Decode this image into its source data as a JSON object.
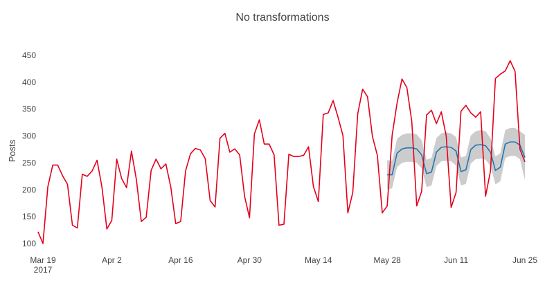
{
  "chart_data": {
    "type": "line",
    "title": "No transformations",
    "xlabel": "",
    "ylabel": "Posts",
    "ylim": [
      90,
      460
    ],
    "grid": false,
    "legend": "none",
    "yticks": [
      100,
      150,
      200,
      250,
      300,
      350,
      400,
      450
    ],
    "xticks": [
      {
        "date": "2017-03-19",
        "label": "Mar 19",
        "sublabel": "2017"
      },
      {
        "date": "2017-04-02",
        "label": "Apr 2",
        "sublabel": ""
      },
      {
        "date": "2017-04-16",
        "label": "Apr 16",
        "sublabel": ""
      },
      {
        "date": "2017-04-30",
        "label": "Apr 30",
        "sublabel": ""
      },
      {
        "date": "2017-05-14",
        "label": "May 14",
        "sublabel": ""
      },
      {
        "date": "2017-05-28",
        "label": "May 28",
        "sublabel": ""
      },
      {
        "date": "2017-06-11",
        "label": "Jun 11",
        "sublabel": ""
      },
      {
        "date": "2017-06-25",
        "label": "Jun 25",
        "sublabel": ""
      }
    ],
    "xlim": [
      "2017-03-19",
      "2017-06-25"
    ],
    "series": [
      {
        "color": "#e3001b",
        "x": [
          "2017-03-18",
          "2017-03-19",
          "2017-03-20",
          "2017-03-21",
          "2017-03-22",
          "2017-03-23",
          "2017-03-24",
          "2017-03-25",
          "2017-03-26",
          "2017-03-27",
          "2017-03-28",
          "2017-03-29",
          "2017-03-30",
          "2017-03-31",
          "2017-04-01",
          "2017-04-02",
          "2017-04-03",
          "2017-04-04",
          "2017-04-05",
          "2017-04-06",
          "2017-04-07",
          "2017-04-08",
          "2017-04-09",
          "2017-04-10",
          "2017-04-11",
          "2017-04-12",
          "2017-04-13",
          "2017-04-14",
          "2017-04-15",
          "2017-04-16",
          "2017-04-17",
          "2017-04-18",
          "2017-04-19",
          "2017-04-20",
          "2017-04-21",
          "2017-04-22",
          "2017-04-23",
          "2017-04-24",
          "2017-04-25",
          "2017-04-26",
          "2017-04-27",
          "2017-04-28",
          "2017-04-29",
          "2017-04-30",
          "2017-05-01",
          "2017-05-02",
          "2017-05-03",
          "2017-05-04",
          "2017-05-05",
          "2017-05-06",
          "2017-05-07",
          "2017-05-08",
          "2017-05-09",
          "2017-05-10",
          "2017-05-11",
          "2017-05-12",
          "2017-05-13",
          "2017-05-14",
          "2017-05-15",
          "2017-05-16",
          "2017-05-17",
          "2017-05-18",
          "2017-05-19",
          "2017-05-20",
          "2017-05-21",
          "2017-05-22",
          "2017-05-23",
          "2017-05-24",
          "2017-05-25",
          "2017-05-26",
          "2017-05-27",
          "2017-05-28",
          "2017-05-29",
          "2017-05-30",
          "2017-05-31",
          "2017-06-01",
          "2017-06-02",
          "2017-06-03",
          "2017-06-04",
          "2017-06-05",
          "2017-06-06",
          "2017-06-07",
          "2017-06-08",
          "2017-06-09",
          "2017-06-10",
          "2017-06-11",
          "2017-06-12",
          "2017-06-13",
          "2017-06-14",
          "2017-06-15",
          "2017-06-16",
          "2017-06-17",
          "2017-06-18",
          "2017-06-19",
          "2017-06-20",
          "2017-06-21",
          "2017-06-22",
          "2017-06-23",
          "2017-06-24",
          "2017-06-25"
        ],
        "y": [
          122,
          100,
          206,
          246,
          246,
          226,
          210,
          134,
          129,
          229,
          225,
          235,
          255,
          205,
          127,
          143,
          257,
          221,
          204,
          272,
          219,
          141,
          149,
          236,
          257,
          239,
          248,
          205,
          137,
          141,
          235,
          267,
          277,
          274,
          258,
          180,
          168,
          296,
          305,
          270,
          276,
          265,
          188,
          148,
          304,
          330,
          285,
          285,
          265,
          134,
          136,
          266,
          262,
          262,
          264,
          280,
          206,
          178,
          340,
          343,
          366,
          335,
          301,
          157,
          195,
          341,
          387,
          373,
          299,
          264,
          157,
          170,
          301,
          361,
          406,
          390,
          327,
          170,
          197,
          339,
          348,
          323,
          345,
          300,
          167,
          195,
          346,
          357,
          343,
          335,
          345,
          188,
          235,
          407,
          415,
          421,
          440,
          420,
          275,
          252
        ]
      },
      {
        "color": "#1f77b4",
        "x": [
          "2017-05-28",
          "2017-05-29",
          "2017-05-30",
          "2017-05-31",
          "2017-06-01",
          "2017-06-02",
          "2017-06-03",
          "2017-06-04",
          "2017-06-05",
          "2017-06-06",
          "2017-06-07",
          "2017-06-08",
          "2017-06-09",
          "2017-06-10",
          "2017-06-11",
          "2017-06-12",
          "2017-06-13",
          "2017-06-14",
          "2017-06-15",
          "2017-06-16",
          "2017-06-17",
          "2017-06-18",
          "2017-06-19",
          "2017-06-20",
          "2017-06-21",
          "2017-06-22",
          "2017-06-23",
          "2017-06-24",
          "2017-06-25"
        ],
        "y": [
          228,
          228,
          268,
          276,
          278,
          278,
          276,
          265,
          230,
          233,
          270,
          279,
          280,
          279,
          272,
          234,
          237,
          275,
          283,
          284,
          282,
          270,
          236,
          242,
          285,
          289,
          289,
          283,
          260
        ],
        "band_lower": [
          200,
          203,
          242,
          250,
          252,
          252,
          250,
          240,
          205,
          208,
          244,
          253,
          254,
          253,
          245,
          208,
          211,
          249,
          257,
          258,
          256,
          244,
          210,
          216,
          259,
          263,
          263,
          257,
          218
        ],
        "band_upper": [
          255,
          254,
          295,
          302,
          305,
          305,
          303,
          292,
          256,
          259,
          296,
          305,
          307,
          305,
          298,
          260,
          263,
          301,
          309,
          311,
          309,
          296,
          262,
          268,
          311,
          315,
          315,
          309,
          302
        ],
        "band_color": "#cccccc"
      }
    ]
  }
}
